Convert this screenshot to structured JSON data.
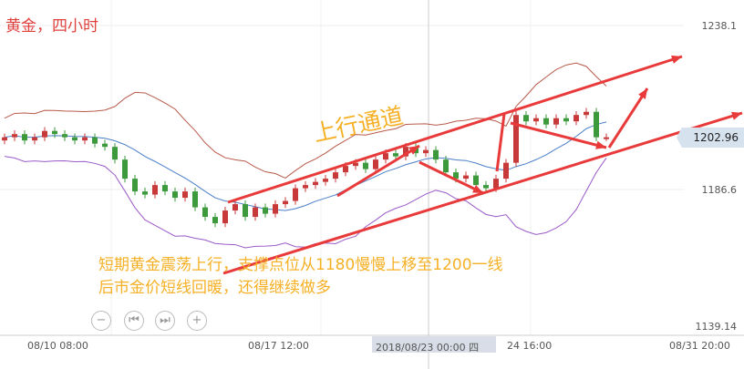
{
  "title": "黄金，四小时",
  "channel_label": "上行通道",
  "notes": [
    "短期黄金震荡上行，支撑点位从1180慢慢上移至1200一线",
    "后市金价短线回暖，还得继续做多"
  ],
  "controls": [
    "zoom-out",
    "prev",
    "next",
    "zoom-in"
  ],
  "control_glyphs": [
    "−",
    "⏮",
    "⏭",
    "+"
  ],
  "current_price": "1202.96",
  "colors": {
    "up": "#c83a3a",
    "down": "#3c9a3c",
    "ma": "#4a7fc8",
    "upper": "#b85a4a",
    "lower": "#9a5ac8",
    "annotation": "#e83a3a"
  },
  "chart_data": {
    "type": "candlestick",
    "y_ticks": [
      "1238.1",
      "1186.6",
      "1139.14"
    ],
    "y_tick_values": [
      1238.1,
      1186.6,
      1139.14
    ],
    "x_ticks": [
      "08/10 08:00",
      "08/17 12:00",
      "2018/08/23 00:00 四",
      "24 16:00",
      "08/31 20:00"
    ],
    "closes": [
      1203,
      1204,
      1202,
      1203,
      1205,
      1204,
      1203,
      1202,
      1203,
      1201,
      1200,
      1196,
      1190,
      1186,
      1185,
      1188,
      1186,
      1184,
      1186,
      1181,
      1178,
      1176,
      1180,
      1182,
      1178,
      1181,
      1179,
      1182,
      1183,
      1187,
      1188,
      1189,
      1190,
      1192,
      1194,
      1195,
      1193,
      1196,
      1198,
      1197,
      1200,
      1198,
      1199,
      1196,
      1192,
      1190,
      1191,
      1188,
      1187,
      1190,
      1195,
      1210,
      1208,
      1209,
      1207,
      1209,
      1208,
      1210,
      1211,
      1203,
      1203
    ],
    "indicators": [
      "Bollinger upper",
      "moving average",
      "Bollinger lower"
    ]
  }
}
